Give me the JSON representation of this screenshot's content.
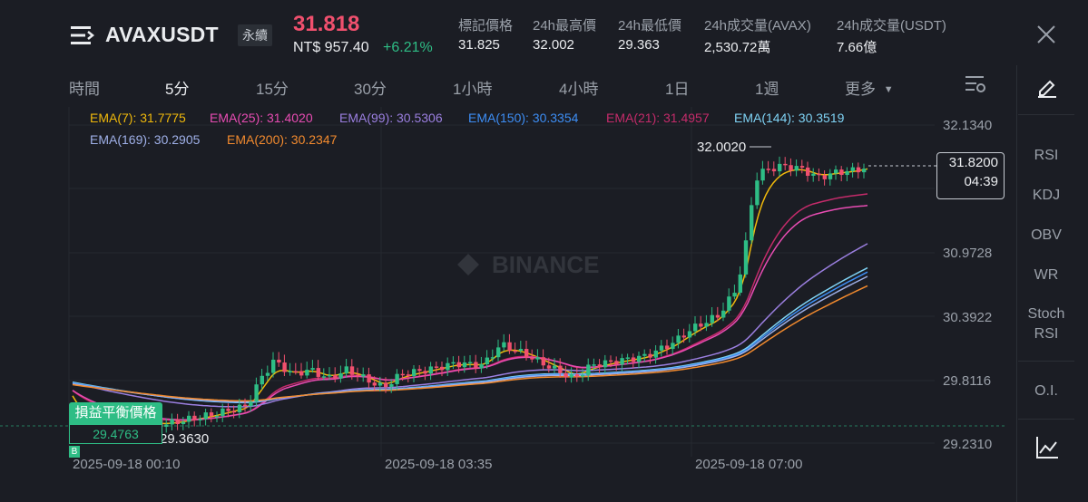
{
  "header": {
    "symbol": "AVAXUSDT",
    "contract_type": "永續",
    "last_price": "31.818",
    "fiat_price": "NT$ 957.40",
    "change_pct": "+6.21%",
    "stats": [
      {
        "label": "標記價格",
        "value": "31.825"
      },
      {
        "label": "24h最高價",
        "value": "32.002"
      },
      {
        "label": "24h最低價",
        "value": "29.363"
      },
      {
        "label": "24h成交量(AVAX)",
        "value": "2,530.72萬"
      },
      {
        "label": "24h成交量(USDT)",
        "value": "7.66億"
      }
    ]
  },
  "timeframes": {
    "time_label": "時間",
    "items": [
      "5分",
      "15分",
      "30分",
      "1小時",
      "4小時",
      "1日",
      "1週"
    ],
    "active": "5分",
    "more": "更多"
  },
  "ema_legend": [
    {
      "label": "EMA(7): 31.7775",
      "color": "#f0b90b"
    },
    {
      "label": "EMA(25): 31.4020",
      "color": "#e84cb3"
    },
    {
      "label": "EMA(99): 30.5306",
      "color": "#9b7fe0"
    },
    {
      "label": "EMA(150): 30.3354",
      "color": "#3d8ef5"
    },
    {
      "label": "EMA(21): 31.4957",
      "color": "#c42b6a"
    },
    {
      "label": "EMA(144): 30.3519",
      "color": "#7fd3f5"
    },
    {
      "label": "EMA(169): 30.2905",
      "color": "#9fb0e8"
    },
    {
      "label": "EMA(200): 30.2347",
      "color": "#f28a2e"
    }
  ],
  "chart": {
    "y_labels": [
      "32.1340",
      "30.9728",
      "30.3922",
      "29.8116",
      "29.2310"
    ],
    "x_labels": [
      "2025-09-18 00:10",
      "2025-09-18 03:35",
      "2025-09-18 07:00"
    ],
    "high_marker": "32.0020",
    "low_marker": "29.3630",
    "current_price": "31.8200",
    "countdown": "04:39",
    "watermark": "BINANCE",
    "breakeven_title": "損益平衡價格",
    "breakeven_value": "29.4763",
    "b_marker": "B"
  },
  "sidebar": {
    "items": [
      "RSI",
      "KDJ",
      "OBV",
      "WR",
      "Stoch\nRSI",
      "O.I."
    ]
  },
  "colors": {
    "up": "#2ebd85",
    "down": "#f0506e",
    "bg": "#1b1d24"
  }
}
